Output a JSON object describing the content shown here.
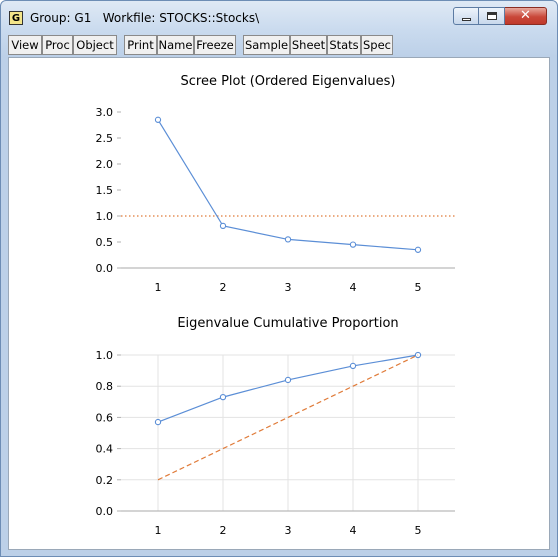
{
  "window": {
    "icon_letter": "G",
    "title": "Group: G1   Workfile: STOCKS::Stocks\\",
    "controls": [
      "minimize",
      "maximize",
      "close"
    ]
  },
  "toolbar": {
    "buttons": [
      "View",
      "Proc",
      "Object",
      "Print",
      "Name",
      "Freeze",
      "Sample",
      "Sheet",
      "Stats",
      "Spec"
    ]
  },
  "chart_data": [
    {
      "type": "line",
      "title": "Scree Plot (Ordered Eigenvalues)",
      "x": [
        1,
        2,
        3,
        4,
        5
      ],
      "xticks": [
        "1",
        "2",
        "3",
        "4",
        "5"
      ],
      "ylim": [
        0,
        3.0
      ],
      "yticks": [
        "0.0",
        "0.5",
        "1.0",
        "1.5",
        "2.0",
        "2.5",
        "3.0"
      ],
      "series": [
        {
          "values": [
            2.85,
            0.81,
            0.55,
            0.45,
            0.35
          ],
          "color": "#5b8ed6"
        }
      ],
      "reference_line": {
        "y": 1.0,
        "style": "dotted",
        "color": "#e07b39"
      },
      "grid": false
    },
    {
      "type": "line",
      "title": "Eigenvalue Cumulative Proportion",
      "x": [
        1,
        2,
        3,
        4,
        5
      ],
      "xticks": [
        "1",
        "2",
        "3",
        "4",
        "5"
      ],
      "ylim": [
        0,
        1.0
      ],
      "yticks": [
        "0.0",
        "0.2",
        "0.4",
        "0.6",
        "0.8",
        "1.0"
      ],
      "series": [
        {
          "values": [
            0.57,
            0.73,
            0.84,
            0.93,
            1.0
          ],
          "color": "#5b8ed6"
        },
        {
          "values": [
            0.2,
            0.4,
            0.6,
            0.8,
            1.0
          ],
          "style": "dashed",
          "color": "#e07b39"
        }
      ],
      "grid": true
    }
  ]
}
